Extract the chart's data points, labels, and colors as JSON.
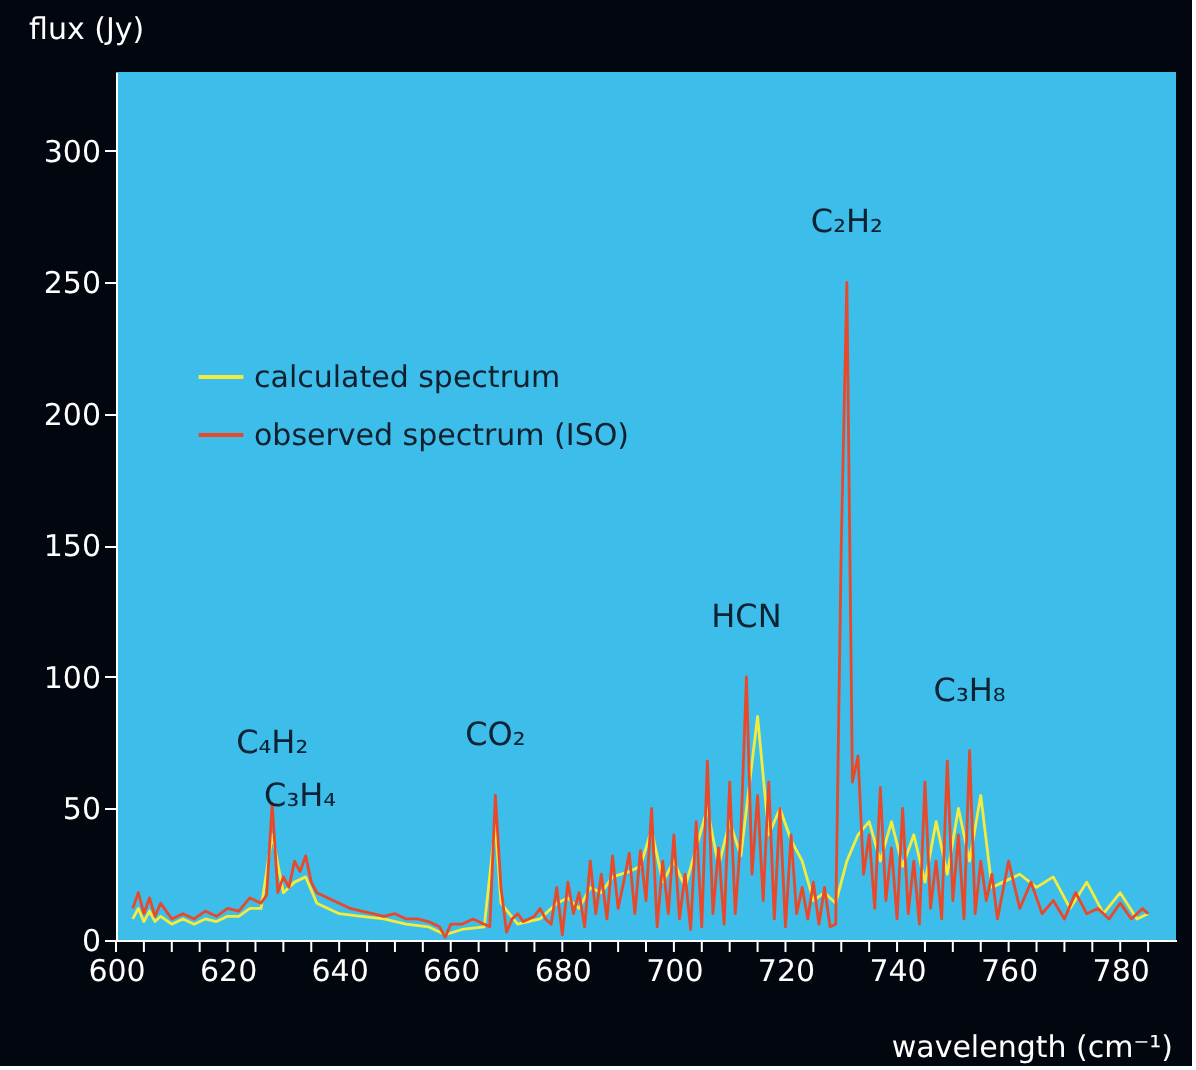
{
  "chart_data": {
    "type": "line",
    "xlabel": "wavelength (cm⁻¹)",
    "ylabel": "flux (Jy)",
    "xlim": [
      600,
      790
    ],
    "ylim": [
      0,
      330
    ],
    "xticks": [
      600,
      {
        "value": 605,
        "label": null
      },
      {
        "value": 610,
        "label": null
      },
      {
        "value": 615,
        "label": null
      },
      620,
      {
        "value": 625,
        "label": null
      },
      {
        "value": 630,
        "label": null
      },
      {
        "value": 635,
        "label": null
      },
      640,
      {
        "value": 645,
        "label": null
      },
      {
        "value": 650,
        "label": null
      },
      {
        "value": 655,
        "label": null
      },
      660,
      {
        "value": 665,
        "label": null
      },
      {
        "value": 670,
        "label": null
      },
      {
        "value": 675,
        "label": null
      },
      680,
      {
        "value": 685,
        "label": null
      },
      {
        "value": 690,
        "label": null
      },
      {
        "value": 695,
        "label": null
      },
      700,
      {
        "value": 705,
        "label": null
      },
      {
        "value": 710,
        "label": null
      },
      {
        "value": 715,
        "label": null
      },
      720,
      {
        "value": 725,
        "label": null
      },
      {
        "value": 730,
        "label": null
      },
      {
        "value": 735,
        "label": null
      },
      740,
      {
        "value": 745,
        "label": null
      },
      {
        "value": 750,
        "label": null
      },
      {
        "value": 755,
        "label": null
      },
      760,
      {
        "value": 765,
        "label": null
      },
      {
        "value": 770,
        "label": null
      },
      {
        "value": 775,
        "label": null
      },
      780,
      {
        "value": 785,
        "label": null
      }
    ],
    "yticks": [
      0,
      50,
      100,
      150,
      200,
      250,
      300
    ],
    "grid": false,
    "legend": "top left",
    "marker": "none",
    "line_style": "solid",
    "annotations": [
      {
        "text": "C₄H₂",
        "x": 628,
        "y": 52
      },
      {
        "text": "C₃H₄",
        "x": 633,
        "y": 32
      },
      {
        "text": "CO₂",
        "x": 668,
        "y": 55
      },
      {
        "text": "HCN",
        "x": 713,
        "y": 100
      },
      {
        "text": "C₂H₂",
        "x": 731,
        "y": 250
      },
      {
        "text": "C₃H₈",
        "x": 753,
        "y": 72
      }
    ],
    "series": [
      {
        "name": "calculated spectrum",
        "color": "#f4ec3c",
        "x": [
          603,
          604,
          605,
          606,
          607,
          608,
          610,
          612,
          614,
          616,
          618,
          620,
          622,
          624,
          626,
          628,
          630,
          632,
          634,
          636,
          638,
          640,
          644,
          648,
          652,
          656,
          659,
          662,
          666,
          668,
          669,
          672,
          676,
          679,
          681,
          683,
          685,
          687,
          689,
          692,
          694,
          696,
          698,
          700,
          702,
          704,
          706,
          708,
          710,
          712,
          715,
          717,
          719,
          721,
          723,
          725,
          727,
          729,
          731,
          733,
          735,
          737,
          739,
          741,
          743,
          745,
          747,
          749,
          751,
          753,
          755,
          757,
          759,
          762,
          765,
          768,
          771,
          774,
          777,
          780,
          783,
          785
        ],
        "values": [
          8,
          12,
          7,
          11,
          7,
          9,
          6,
          8,
          6,
          8,
          7,
          9,
          9,
          12,
          12,
          40,
          18,
          22,
          24,
          14,
          12,
          10,
          9,
          8,
          6,
          5,
          2,
          4,
          5,
          44,
          14,
          6,
          8,
          14,
          16,
          12,
          20,
          18,
          24,
          26,
          28,
          42,
          22,
          30,
          20,
          35,
          50,
          28,
          45,
          32,
          85,
          40,
          50,
          38,
          30,
          15,
          18,
          14,
          30,
          40,
          45,
          30,
          45,
          28,
          40,
          22,
          45,
          25,
          50,
          30,
          55,
          20,
          22,
          25,
          20,
          24,
          12,
          22,
          10,
          18,
          8,
          10
        ]
      },
      {
        "name": "observed spectrum (ISO)",
        "color": "#e8492a",
        "x": [
          603,
          604,
          605,
          606,
          607,
          608,
          610,
          612,
          614,
          616,
          618,
          620,
          622,
          624,
          626,
          627,
          628,
          629,
          630,
          631,
          632,
          633,
          634,
          635,
          636,
          638,
          640,
          642,
          644,
          646,
          648,
          650,
          652,
          654,
          656,
          658,
          659,
          660,
          662,
          664,
          666,
          667,
          668,
          669,
          670,
          671,
          672,
          673,
          674,
          675,
          676,
          677,
          678,
          679,
          680,
          681,
          682,
          683,
          684,
          685,
          686,
          687,
          688,
          689,
          690,
          691,
          692,
          693,
          694,
          695,
          696,
          697,
          698,
          699,
          700,
          701,
          702,
          703,
          704,
          705,
          706,
          707,
          708,
          709,
          710,
          711,
          712,
          713,
          714,
          715,
          716,
          717,
          718,
          719,
          720,
          721,
          722,
          723,
          724,
          725,
          726,
          727,
          728,
          729,
          730,
          731,
          732,
          733,
          734,
          735,
          736,
          737,
          738,
          739,
          740,
          741,
          742,
          743,
          744,
          745,
          746,
          747,
          748,
          749,
          750,
          751,
          752,
          753,
          754,
          755,
          756,
          757,
          758,
          760,
          762,
          764,
          766,
          768,
          770,
          772,
          774,
          776,
          778,
          780,
          782,
          784,
          785
        ],
        "values": [
          12,
          18,
          10,
          16,
          9,
          14,
          8,
          10,
          8,
          11,
          9,
          12,
          11,
          16,
          14,
          17,
          52,
          18,
          24,
          20,
          30,
          26,
          32,
          22,
          18,
          16,
          14,
          12,
          11,
          10,
          9,
          10,
          8,
          8,
          7,
          5,
          1,
          6,
          6,
          8,
          6,
          5,
          55,
          20,
          3,
          8,
          10,
          7,
          8,
          9,
          12,
          8,
          6,
          20,
          2,
          22,
          10,
          18,
          5,
          30,
          10,
          25,
          8,
          32,
          12,
          22,
          33,
          10,
          34,
          15,
          50,
          5,
          30,
          10,
          40,
          8,
          25,
          4,
          45,
          5,
          68,
          10,
          35,
          6,
          60,
          10,
          40,
          100,
          25,
          55,
          15,
          60,
          8,
          50,
          5,
          40,
          10,
          20,
          8,
          22,
          6,
          20,
          5,
          6,
          150,
          250,
          60,
          70,
          25,
          40,
          12,
          58,
          15,
          35,
          8,
          50,
          10,
          30,
          6,
          60,
          12,
          30,
          8,
          68,
          15,
          40,
          8,
          72,
          10,
          30,
          15,
          25,
          8,
          30,
          12,
          22,
          10,
          15,
          8,
          18,
          10,
          12,
          8,
          14,
          8,
          12,
          10
        ]
      }
    ]
  }
}
